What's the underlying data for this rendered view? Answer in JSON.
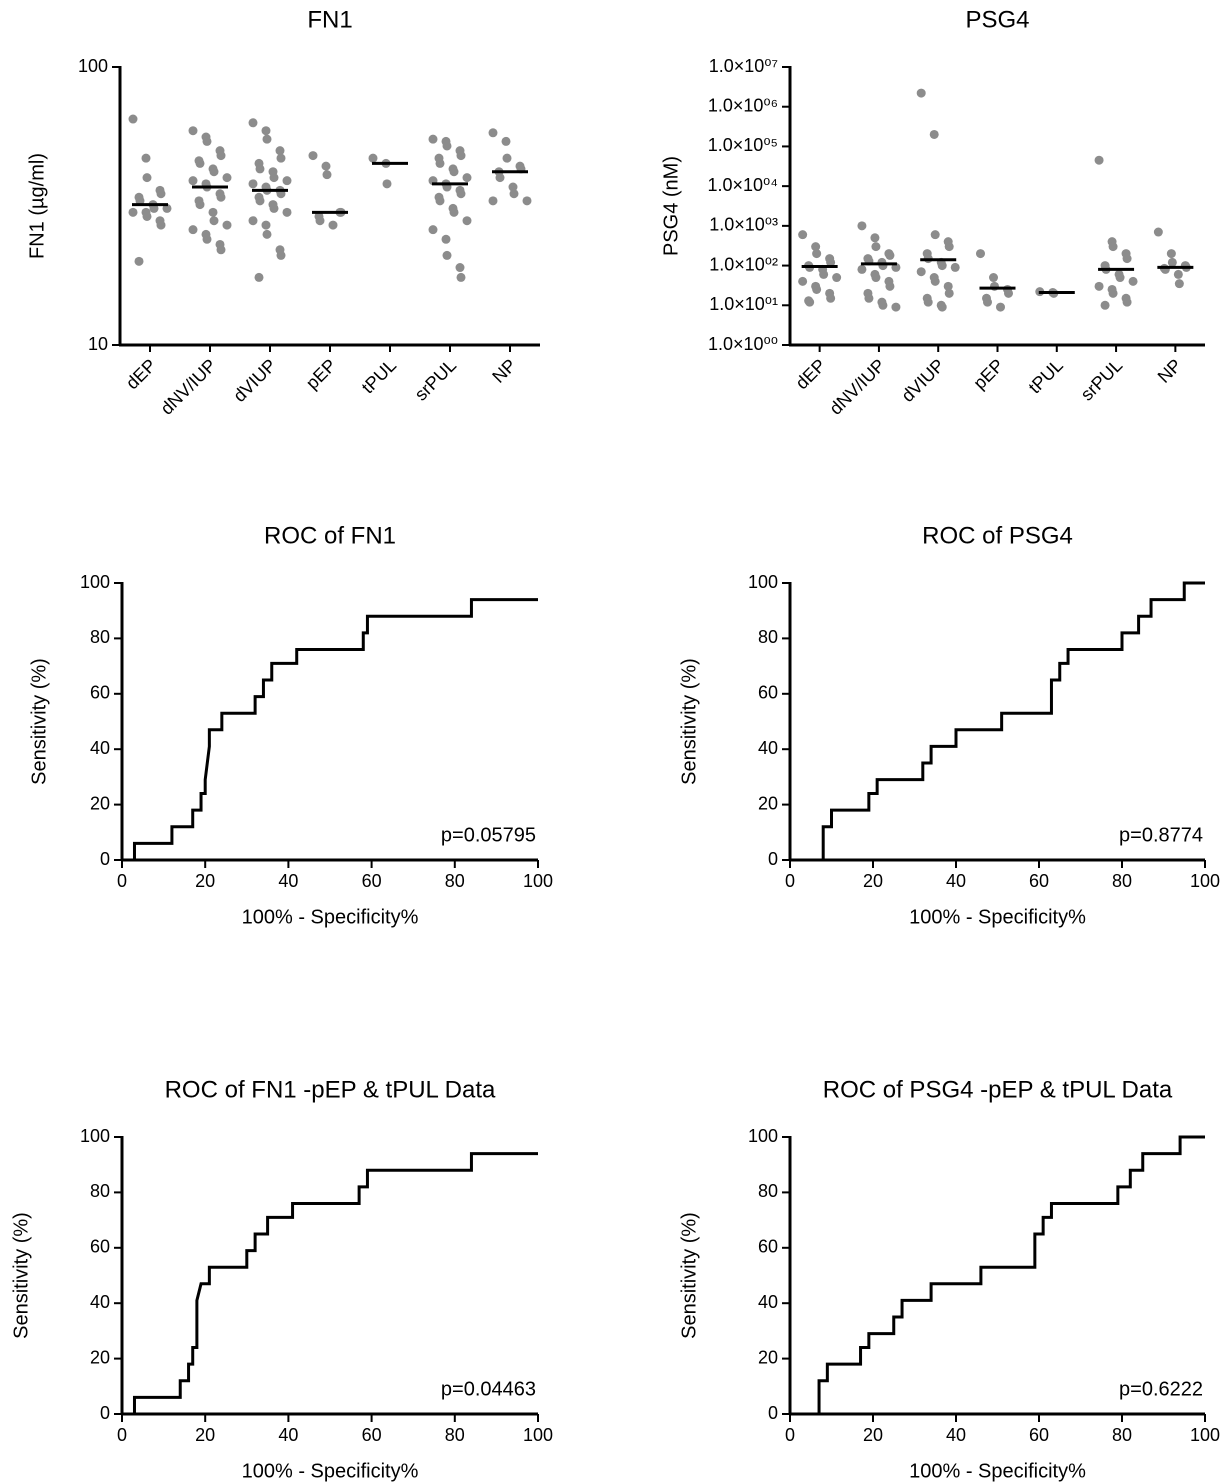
{
  "chart_data": [
    {
      "type": "dotplot",
      "title": "FN1",
      "ylabel": "FN1 (µg/ml)",
      "log": true,
      "color": "#8c8c8c",
      "categories": [
        "dEP",
        "dNV/IUP",
        "dVIUP",
        "pEP",
        "tPUL",
        "srPUL",
        "NP"
      ],
      "points": [
        [
          65,
          47,
          40,
          36,
          35,
          34,
          33,
          32,
          31,
          31,
          30,
          30,
          29,
          28,
          27,
          20
        ],
        [
          59,
          56,
          54,
          50,
          48,
          46,
          45,
          43,
          42,
          40,
          39,
          38,
          37,
          35,
          34,
          33,
          32,
          30,
          28,
          27,
          26,
          25,
          24,
          23,
          22
        ],
        [
          63,
          59,
          55,
          50,
          47,
          45,
          43,
          42,
          40,
          39,
          38,
          37,
          36,
          36,
          35,
          34,
          33,
          32,
          31,
          30,
          28,
          27,
          25,
          22,
          21,
          17.5
        ],
        [
          48,
          44,
          41,
          30,
          30,
          29,
          28,
          27
        ],
        [
          47,
          45,
          38
        ],
        [
          55,
          54,
          52,
          50,
          48,
          47,
          45,
          43,
          42,
          40,
          39,
          38,
          37,
          36,
          35,
          34,
          33,
          31,
          30,
          28,
          26,
          24,
          21,
          19,
          17.5
        ],
        [
          58,
          54,
          47,
          44,
          43,
          42,
          40,
          37,
          35,
          33,
          33
        ]
      ],
      "medians": [
        32,
        37,
        36,
        30,
        45,
        38,
        42
      ],
      "ylim": [
        10,
        100
      ],
      "yticks": [
        10,
        100
      ]
    },
    {
      "type": "dotplot",
      "title": "PSG4",
      "ylabel": "PSG4 (nM)",
      "log": true,
      "color": "#8c8c8c",
      "categories": [
        "dEP",
        "dNV/IUP",
        "dVIUP",
        "pEP",
        "tPUL",
        "srPUL",
        "NP"
      ],
      "points": [
        [
          600,
          300,
          200,
          150,
          120,
          100,
          90,
          80,
          60,
          50,
          40,
          30,
          25,
          20,
          15,
          13,
          12
        ],
        [
          1000,
          500,
          300,
          200,
          180,
          150,
          130,
          120,
          100,
          90,
          80,
          60,
          50,
          40,
          30,
          20,
          15,
          12,
          10,
          9
        ],
        [
          2200000,
          200000,
          600,
          400,
          300,
          200,
          150,
          120,
          100,
          90,
          70,
          50,
          40,
          30,
          20,
          15,
          12,
          10,
          9
        ],
        [
          200,
          50,
          30,
          25,
          20,
          15,
          12,
          9
        ],
        [
          22,
          21,
          20
        ],
        [
          45000,
          400,
          300,
          200,
          150,
          100,
          80,
          60,
          50,
          40,
          30,
          25,
          20,
          15,
          12,
          10
        ],
        [
          700,
          200,
          120,
          100,
          90,
          85,
          80,
          60,
          35
        ]
      ],
      "medians": [
        95,
        110,
        140,
        27,
        21,
        80,
        90
      ],
      "ylim": [
        1,
        10000000
      ],
      "yticks": [
        {
          "value": 1,
          "label": "1.0×10⁰⁰"
        },
        {
          "value": 10,
          "label": "1.0×10⁰¹"
        },
        {
          "value": 100,
          "label": "1.0×10⁰²"
        },
        {
          "value": 1000,
          "label": "1.0×10⁰³"
        },
        {
          "value": 10000,
          "label": "1.0×10⁰⁴"
        },
        {
          "value": 100000,
          "label": "1.0×10⁰⁵"
        },
        {
          "value": 1000000,
          "label": "1.0×10⁰⁶"
        },
        {
          "value": 10000000,
          "label": "1.0×10⁰⁷"
        }
      ]
    },
    {
      "type": "line",
      "title": "ROC of FN1",
      "xlabel": "100% - Specificity%",
      "ylabel": "Sensitivity (%)",
      "annotation": "p=0.05795",
      "color": "#000000",
      "x": [
        3,
        3,
        12,
        12,
        17,
        17,
        19,
        19,
        20,
        20,
        21,
        21,
        22,
        24,
        24,
        32,
        32,
        34,
        34,
        36,
        36,
        42,
        42,
        58,
        58,
        59,
        59,
        84,
        84,
        100
      ],
      "values": [
        0,
        6,
        6,
        12,
        12,
        18,
        18,
        24,
        24,
        29,
        41,
        47,
        47,
        47,
        53,
        53,
        59,
        59,
        65,
        65,
        71,
        71,
        76,
        76,
        82,
        82,
        88,
        88,
        94,
        94
      ],
      "xlim": [
        0,
        100
      ],
      "ylim": [
        0,
        100
      ],
      "xticks": [
        0,
        20,
        40,
        60,
        80,
        100
      ],
      "yticks": [
        0,
        20,
        40,
        60,
        80,
        100
      ]
    },
    {
      "type": "line",
      "title": "ROC of PSG4",
      "xlabel": "100% - Specificity%",
      "ylabel": "Sensitivity (%)",
      "annotation": "p=0.8774",
      "color": "#000000",
      "x": [
        8,
        8,
        10,
        10,
        19,
        19,
        21,
        21,
        32,
        32,
        34,
        34,
        40,
        40,
        51,
        51,
        63,
        63,
        65,
        65,
        67,
        67,
        80,
        80,
        84,
        84,
        87,
        87,
        95,
        95,
        100
      ],
      "values": [
        0,
        12,
        12,
        18,
        18,
        24,
        24,
        29,
        29,
        35,
        35,
        41,
        41,
        47,
        47,
        53,
        53,
        65,
        65,
        71,
        71,
        76,
        76,
        82,
        82,
        88,
        88,
        94,
        94,
        100,
        100
      ],
      "xlim": [
        0,
        100
      ],
      "ylim": [
        0,
        100
      ],
      "xticks": [
        0,
        20,
        40,
        60,
        80,
        100
      ],
      "yticks": [
        0,
        20,
        40,
        60,
        80,
        100
      ]
    },
    {
      "type": "line",
      "title": "ROC of FN1 -pEP & tPUL Data",
      "xlabel": "100% - Specificity%",
      "ylabel": "Sensitivity (%)",
      "annotation": "p=0.04463",
      "color": "#000000",
      "x": [
        3,
        3,
        14,
        14,
        16,
        16,
        17,
        17,
        18,
        18,
        19,
        21,
        21,
        30,
        30,
        32,
        32,
        35,
        35,
        41,
        41,
        57,
        57,
        59,
        59,
        84,
        84,
        100
      ],
      "values": [
        0,
        6,
        6,
        12,
        12,
        18,
        18,
        24,
        24,
        41,
        47,
        47,
        53,
        53,
        59,
        59,
        65,
        65,
        71,
        71,
        76,
        76,
        82,
        82,
        88,
        88,
        94,
        94
      ],
      "xlim": [
        0,
        100
      ],
      "ylim": [
        0,
        100
      ],
      "xticks": [
        0,
        20,
        40,
        60,
        80,
        100
      ],
      "yticks": [
        0,
        20,
        40,
        60,
        80,
        100
      ]
    },
    {
      "type": "line",
      "title": "ROC of PSG4 -pEP & tPUL Data",
      "xlabel": "100% - Specificity%",
      "ylabel": "Sensitivity (%)",
      "annotation": "p=0.6222",
      "color": "#000000",
      "x": [
        7,
        7,
        9,
        9,
        17,
        17,
        19,
        19,
        25,
        25,
        27,
        27,
        34,
        34,
        46,
        46,
        59,
        59,
        61,
        61,
        63,
        63,
        79,
        79,
        82,
        82,
        85,
        85,
        94,
        94,
        100
      ],
      "values": [
        0,
        12,
        12,
        18,
        18,
        24,
        24,
        29,
        29,
        35,
        35,
        41,
        41,
        47,
        47,
        53,
        53,
        65,
        65,
        71,
        71,
        76,
        76,
        82,
        82,
        88,
        88,
        94,
        94,
        100,
        100
      ],
      "xlim": [
        0,
        100
      ],
      "ylim": [
        0,
        100
      ],
      "xticks": [
        0,
        20,
        40,
        60,
        80,
        100
      ],
      "yticks": [
        0,
        20,
        40,
        60,
        80,
        100
      ]
    }
  ]
}
